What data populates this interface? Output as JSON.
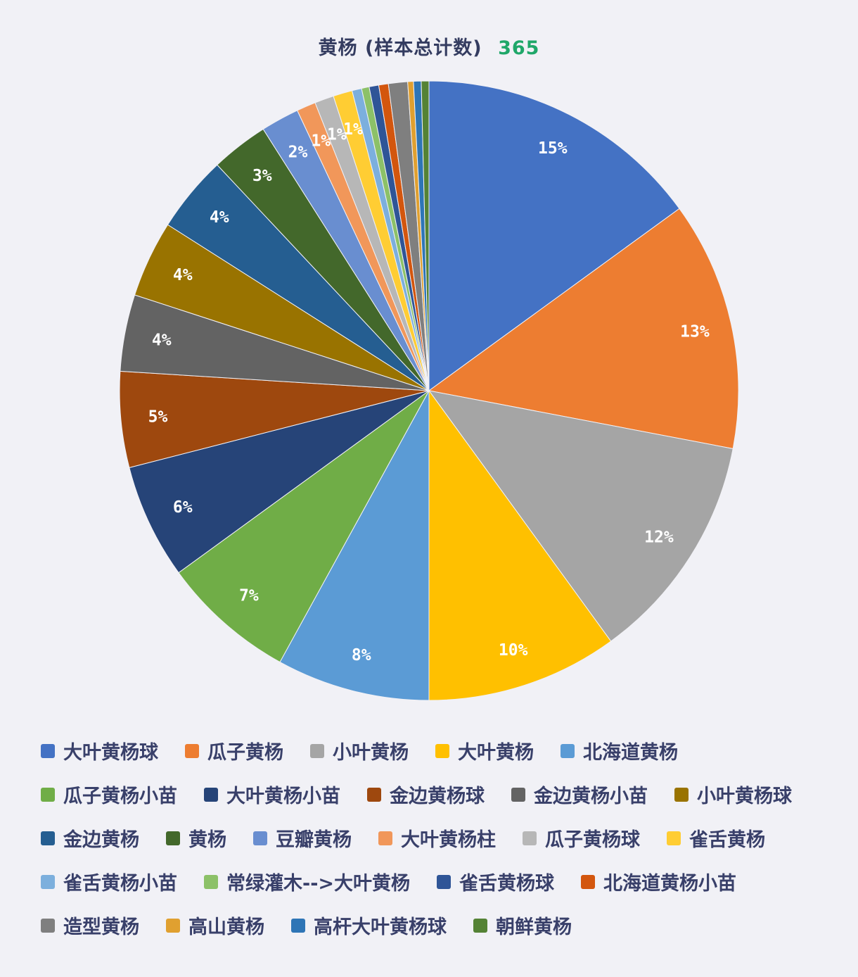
{
  "header": {
    "title": "黄杨 (样本总计数)",
    "count": "365"
  },
  "chart_data": {
    "type": "pie",
    "title": "黄杨 (样本总计数) 365",
    "total_samples": 365,
    "legend_position": "bottom",
    "background_color": "#f1f1f6",
    "count_color": "#1fa769",
    "text_color": "#39406a",
    "slices": [
      {
        "label": "大叶黄杨球",
        "percent": 15,
        "percent_label": "15%",
        "color": "#4472c4"
      },
      {
        "label": "瓜子黄杨",
        "percent": 13,
        "percent_label": "13%",
        "color": "#ed7d31"
      },
      {
        "label": "小叶黄杨",
        "percent": 12,
        "percent_label": "12%",
        "color": "#a5a5a5"
      },
      {
        "label": "大叶黄杨",
        "percent": 10,
        "percent_label": "10%",
        "color": "#ffc000"
      },
      {
        "label": "北海道黄杨",
        "percent": 8,
        "percent_label": "8%",
        "color": "#5b9bd5"
      },
      {
        "label": "瓜子黄杨小苗",
        "percent": 7,
        "percent_label": "7%",
        "color": "#70ad47"
      },
      {
        "label": "大叶黄杨小苗",
        "percent": 6,
        "percent_label": "6%",
        "color": "#264478"
      },
      {
        "label": "金边黄杨球",
        "percent": 5,
        "percent_label": "5%",
        "color": "#9e480e"
      },
      {
        "label": "金边黄杨小苗",
        "percent": 4,
        "percent_label": "4%",
        "color": "#636363"
      },
      {
        "label": "小叶黄杨球",
        "percent": 4,
        "percent_label": "4%",
        "color": "#997300"
      },
      {
        "label": "金边黄杨",
        "percent": 4,
        "percent_label": "4%",
        "color": "#255e91"
      },
      {
        "label": "黄杨",
        "percent": 3,
        "percent_label": "3%",
        "color": "#43682b"
      },
      {
        "label": "豆瓣黄杨",
        "percent": 2,
        "percent_label": "2%",
        "color": "#698ed0"
      },
      {
        "label": "大叶黄杨柱",
        "percent": 1,
        "percent_label": "1%",
        "color": "#f1975a"
      },
      {
        "label": "瓜子黄杨球",
        "percent": 1,
        "percent_label": "1%",
        "color": "#b7b7b7"
      },
      {
        "label": "雀舌黄杨",
        "percent": 1,
        "percent_label": "1%",
        "color": "#ffcd33"
      },
      {
        "label": "雀舌黄杨小苗",
        "percent": 0.5,
        "percent_label": "",
        "color": "#7cafdd"
      },
      {
        "label": "常绿灌木-->大叶黄杨",
        "percent": 0.4,
        "percent_label": "",
        "color": "#8cc168"
      },
      {
        "label": "雀舌黄杨球",
        "percent": 0.5,
        "percent_label": "",
        "color": "#2f5597"
      },
      {
        "label": "北海道黄杨小苗",
        "percent": 0.5,
        "percent_label": "",
        "color": "#d3560e"
      },
      {
        "label": "造型黄杨",
        "percent": 1.0,
        "percent_label": "",
        "color": "#7f7f7f"
      },
      {
        "label": "高山黄杨",
        "percent": 0.3,
        "percent_label": "",
        "color": "#e0a030"
      },
      {
        "label": "高杆大叶黄杨球",
        "percent": 0.4,
        "percent_label": "",
        "color": "#2e75b6"
      },
      {
        "label": "朝鲜黄杨",
        "percent": 0.4,
        "percent_label": "",
        "color": "#548235"
      }
    ],
    "legend_rows": [
      [
        0,
        1,
        2,
        3,
        4
      ],
      [
        5,
        6,
        7,
        8,
        9
      ],
      [
        10,
        11,
        12,
        13,
        14,
        15
      ],
      [
        16,
        17,
        18,
        19
      ],
      [
        20,
        21,
        22,
        23
      ]
    ]
  }
}
